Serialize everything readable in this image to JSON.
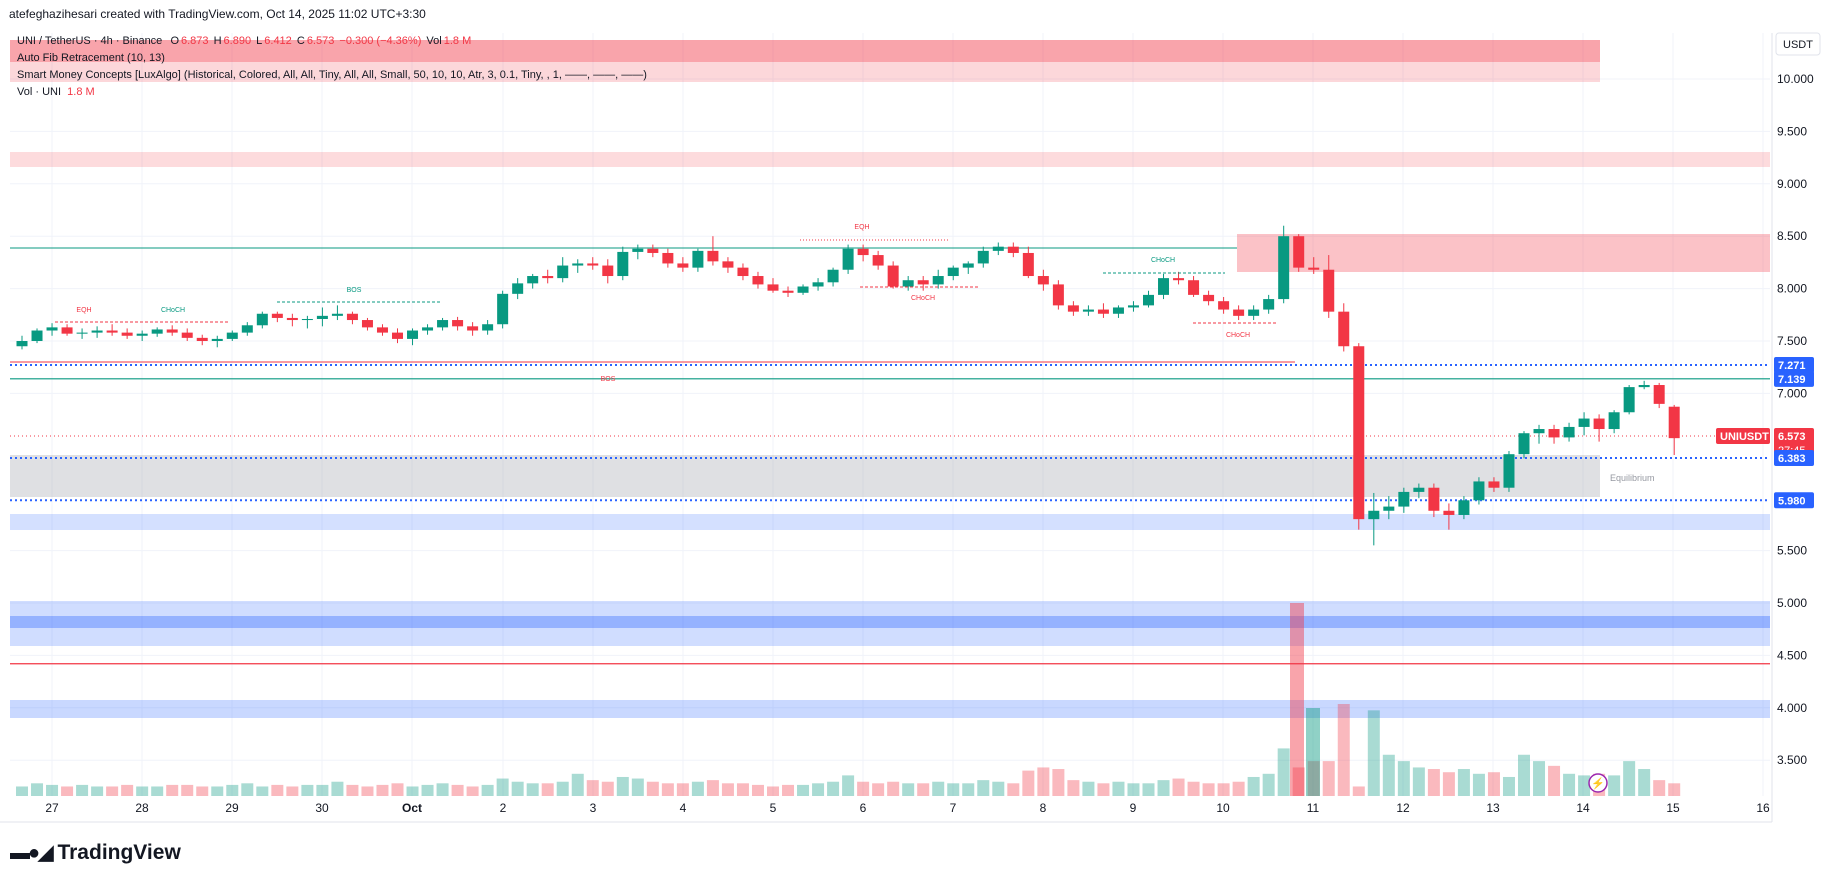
{
  "header": {
    "author_line": "atefeghazihesari created with TradingView.com, Oct 14, 2025 11:02 UTC+3:30"
  },
  "legend": {
    "symbol": "UNI / TetherUS · 4h · Binance",
    "open_label": "O",
    "open": "6.873",
    "high_label": "H",
    "high": "6.890",
    "low_label": "L",
    "low": "6.412",
    "close_label": "C",
    "close": "6.573",
    "change": "−0.300 (−4.36%)",
    "vol_label": "Vol",
    "vol": "1.8 M",
    "fib": "Auto Fib Retracement (10, 13)",
    "smc": "Smart Money Concepts [LuxAlgo] (Historical, Colored, All, All, Tiny, All, All, Small, 50, 10, 10, Atr, 3, 0.1, Tiny, , 1, ——, ——, ——)",
    "vol_uni": "Vol · UNI",
    "vol_uni_value": "1.8 M"
  },
  "axis": {
    "currency": "USDT"
  },
  "annotations": {
    "eqh1": "EQH",
    "choch1": "CHoCH",
    "bos1": "BOS",
    "bos2": "BOS",
    "eqh2": "EQH",
    "choch2": "CHoCH",
    "choch3": "CHoCH",
    "choch4": "CHoCH",
    "equilibrium": "Equilibrium"
  },
  "price_badges": {
    "b1": "7.271",
    "b2": "7.139",
    "symbol": "UNIUSDT",
    "last": "6.573",
    "countdown": "27:45",
    "b3": "6.383",
    "b4": "5.980"
  },
  "colors": {
    "up": "#089981",
    "down": "#f23645",
    "blue": "#2962ff"
  },
  "footer": {
    "brand": "TradingView"
  },
  "chart_data": {
    "type": "candlestick",
    "timeframe": "4h",
    "ylim": [
      3.2,
      10.6
    ],
    "y_ticks": [
      "10.000",
      "9.500",
      "9.000",
      "8.500",
      "8.000",
      "7.500",
      "7.000",
      "5.500",
      "5.000",
      "4.500",
      "4.000",
      "3.500"
    ],
    "x_ticks": [
      "27",
      "28",
      "29",
      "30",
      "Oct",
      "2",
      "3",
      "4",
      "5",
      "6",
      "7",
      "8",
      "9",
      "10",
      "11",
      "12",
      "13",
      "14",
      "15",
      "16"
    ],
    "ohlc": [
      [
        7.45,
        7.55,
        7.42,
        7.5
      ],
      [
        7.5,
        7.62,
        7.48,
        7.6
      ],
      [
        7.6,
        7.67,
        7.55,
        7.63
      ],
      [
        7.63,
        7.66,
        7.55,
        7.57
      ],
      [
        7.57,
        7.62,
        7.52,
        7.58
      ],
      [
        7.58,
        7.64,
        7.53,
        7.6
      ],
      [
        7.6,
        7.66,
        7.55,
        7.58
      ],
      [
        7.58,
        7.62,
        7.52,
        7.55
      ],
      [
        7.55,
        7.6,
        7.5,
        7.57
      ],
      [
        7.57,
        7.63,
        7.54,
        7.61
      ],
      [
        7.61,
        7.65,
        7.55,
        7.58
      ],
      [
        7.58,
        7.62,
        7.5,
        7.53
      ],
      [
        7.53,
        7.56,
        7.46,
        7.5
      ],
      [
        7.5,
        7.55,
        7.44,
        7.52
      ],
      [
        7.52,
        7.6,
        7.5,
        7.58
      ],
      [
        7.58,
        7.68,
        7.55,
        7.65
      ],
      [
        7.65,
        7.78,
        7.62,
        7.76
      ],
      [
        7.76,
        7.78,
        7.68,
        7.72
      ],
      [
        7.72,
        7.76,
        7.64,
        7.7
      ],
      [
        7.7,
        7.74,
        7.62,
        7.71
      ],
      [
        7.71,
        7.82,
        7.64,
        7.74
      ],
      [
        7.74,
        7.84,
        7.7,
        7.76
      ],
      [
        7.76,
        7.78,
        7.66,
        7.7
      ],
      [
        7.7,
        7.72,
        7.6,
        7.63
      ],
      [
        7.63,
        7.66,
        7.55,
        7.58
      ],
      [
        7.58,
        7.62,
        7.48,
        7.52
      ],
      [
        7.52,
        7.62,
        7.46,
        7.6
      ],
      [
        7.6,
        7.66,
        7.56,
        7.63
      ],
      [
        7.63,
        7.72,
        7.6,
        7.7
      ],
      [
        7.7,
        7.73,
        7.6,
        7.64
      ],
      [
        7.64,
        7.68,
        7.55,
        7.6
      ],
      [
        7.6,
        7.7,
        7.56,
        7.66
      ],
      [
        7.66,
        7.98,
        7.62,
        7.95
      ],
      [
        7.95,
        8.1,
        7.9,
        8.05
      ],
      [
        8.05,
        8.14,
        8.0,
        8.12
      ],
      [
        8.12,
        8.18,
        8.05,
        8.1
      ],
      [
        8.1,
        8.3,
        8.06,
        8.22
      ],
      [
        8.22,
        8.28,
        8.15,
        8.24
      ],
      [
        8.24,
        8.3,
        8.18,
        8.22
      ],
      [
        8.22,
        8.28,
        8.05,
        8.12
      ],
      [
        8.12,
        8.4,
        8.08,
        8.35
      ],
      [
        8.35,
        8.42,
        8.28,
        8.38
      ],
      [
        8.38,
        8.42,
        8.3,
        8.34
      ],
      [
        8.34,
        8.38,
        8.2,
        8.24
      ],
      [
        8.24,
        8.3,
        8.16,
        8.2
      ],
      [
        8.2,
        8.38,
        8.16,
        8.36
      ],
      [
        8.36,
        8.5,
        8.22,
        8.26
      ],
      [
        8.26,
        8.3,
        8.15,
        8.2
      ],
      [
        8.2,
        8.24,
        8.08,
        8.12
      ],
      [
        8.12,
        8.16,
        8.0,
        8.04
      ],
      [
        8.04,
        8.1,
        7.96,
        7.98
      ],
      [
        7.98,
        8.02,
        7.92,
        7.96
      ],
      [
        7.96,
        8.04,
        7.94,
        8.02
      ],
      [
        8.02,
        8.1,
        7.98,
        8.06
      ],
      [
        8.06,
        8.2,
        8.02,
        8.18
      ],
      [
        8.18,
        8.42,
        8.14,
        8.38
      ],
      [
        8.38,
        8.42,
        8.26,
        8.32
      ],
      [
        8.32,
        8.36,
        8.18,
        8.22
      ],
      [
        8.22,
        8.26,
        8.0,
        8.02
      ],
      [
        8.02,
        8.12,
        7.98,
        8.08
      ],
      [
        8.08,
        8.12,
        7.98,
        8.04
      ],
      [
        8.04,
        8.18,
        8.0,
        8.12
      ],
      [
        8.12,
        8.22,
        8.08,
        8.2
      ],
      [
        8.2,
        8.26,
        8.14,
        8.24
      ],
      [
        8.24,
        8.4,
        8.2,
        8.36
      ],
      [
        8.36,
        8.44,
        8.32,
        8.4
      ],
      [
        8.4,
        8.44,
        8.3,
        8.34
      ],
      [
        8.34,
        8.4,
        8.1,
        8.12
      ],
      [
        8.12,
        8.18,
        7.98,
        8.04
      ],
      [
        8.04,
        8.08,
        7.8,
        7.84
      ],
      [
        7.84,
        7.88,
        7.74,
        7.78
      ],
      [
        7.78,
        7.84,
        7.74,
        7.8
      ],
      [
        7.8,
        7.86,
        7.72,
        7.76
      ],
      [
        7.76,
        7.84,
        7.72,
        7.82
      ],
      [
        7.82,
        7.88,
        7.78,
        7.84
      ],
      [
        7.84,
        7.98,
        7.82,
        7.94
      ],
      [
        7.94,
        8.14,
        7.9,
        8.1
      ],
      [
        8.1,
        8.16,
        8.04,
        8.08
      ],
      [
        8.08,
        8.12,
        7.92,
        7.94
      ],
      [
        7.94,
        7.98,
        7.84,
        7.88
      ],
      [
        7.88,
        7.92,
        7.76,
        7.8
      ],
      [
        7.8,
        7.84,
        7.7,
        7.74
      ],
      [
        7.74,
        7.84,
        7.7,
        7.8
      ],
      [
        7.8,
        7.94,
        7.76,
        7.9
      ],
      [
        7.9,
        8.6,
        7.86,
        8.5
      ],
      [
        8.5,
        8.52,
        8.16,
        8.2
      ],
      [
        8.2,
        8.3,
        8.14,
        8.18
      ],
      [
        8.18,
        8.32,
        7.72,
        7.78
      ],
      [
        7.78,
        7.86,
        7.4,
        7.45
      ],
      [
        7.45,
        7.48,
        5.7,
        5.8
      ],
      [
        5.8,
        6.05,
        5.55,
        5.88
      ],
      [
        5.88,
        6.02,
        5.8,
        5.92
      ],
      [
        5.92,
        6.1,
        5.86,
        6.06
      ],
      [
        6.06,
        6.14,
        6.0,
        6.1
      ],
      [
        6.1,
        6.14,
        5.82,
        5.88
      ],
      [
        5.88,
        5.95,
        5.7,
        5.84
      ],
      [
        5.84,
        6.02,
        5.8,
        5.98
      ],
      [
        5.98,
        6.2,
        5.94,
        6.16
      ],
      [
        6.16,
        6.2,
        6.06,
        6.1
      ],
      [
        6.1,
        6.45,
        6.06,
        6.42
      ],
      [
        6.42,
        6.64,
        6.38,
        6.62
      ],
      [
        6.62,
        6.7,
        6.52,
        6.66
      ],
      [
        6.66,
        6.7,
        6.52,
        6.58
      ],
      [
        6.58,
        6.72,
        6.54,
        6.68
      ],
      [
        6.68,
        6.82,
        6.6,
        6.76
      ],
      [
        6.76,
        6.8,
        6.54,
        6.66
      ],
      [
        6.66,
        6.84,
        6.62,
        6.82
      ],
      [
        6.82,
        7.08,
        6.8,
        7.06
      ],
      [
        7.06,
        7.12,
        7.04,
        7.08
      ],
      [
        7.08,
        7.1,
        6.86,
        6.9
      ],
      [
        6.873,
        6.89,
        6.412,
        6.573
      ]
    ],
    "volume": [
      6,
      8,
      7,
      6,
      7,
      6,
      6,
      7,
      6,
      6,
      7,
      7,
      6,
      6,
      7,
      8,
      6,
      7,
      6,
      7,
      7,
      9,
      7,
      6,
      7,
      8,
      6,
      7,
      8,
      7,
      6,
      7,
      11,
      9,
      8,
      8,
      9,
      14,
      10,
      9,
      12,
      11,
      9,
      8,
      8,
      9,
      10,
      8,
      8,
      7,
      6,
      7,
      7,
      8,
      9,
      13,
      9,
      8,
      9,
      8,
      8,
      9,
      8,
      8,
      10,
      9,
      8,
      16,
      18,
      17,
      10,
      9,
      8,
      9,
      8,
      8,
      10,
      11,
      9,
      8,
      8,
      9,
      12,
      14,
      30,
      18,
      22,
      22,
      58,
      6,
      54,
      26,
      22,
      18,
      17,
      15,
      17,
      14,
      15,
      12,
      26,
      22,
      19,
      14,
      13,
      14,
      13,
      22,
      17,
      10,
      8
    ],
    "levels": [
      {
        "price": 7.271,
        "style": "dotted",
        "color": "#2962ff"
      },
      {
        "price": 7.139,
        "style": "solid",
        "color": "#089981"
      },
      {
        "price": 6.383,
        "style": "dotted",
        "color": "#2962ff"
      },
      {
        "price": 5.98,
        "style": "dotted",
        "color": "#2962ff"
      },
      {
        "price": 4.42,
        "style": "solid",
        "color": "#f23645"
      }
    ]
  }
}
